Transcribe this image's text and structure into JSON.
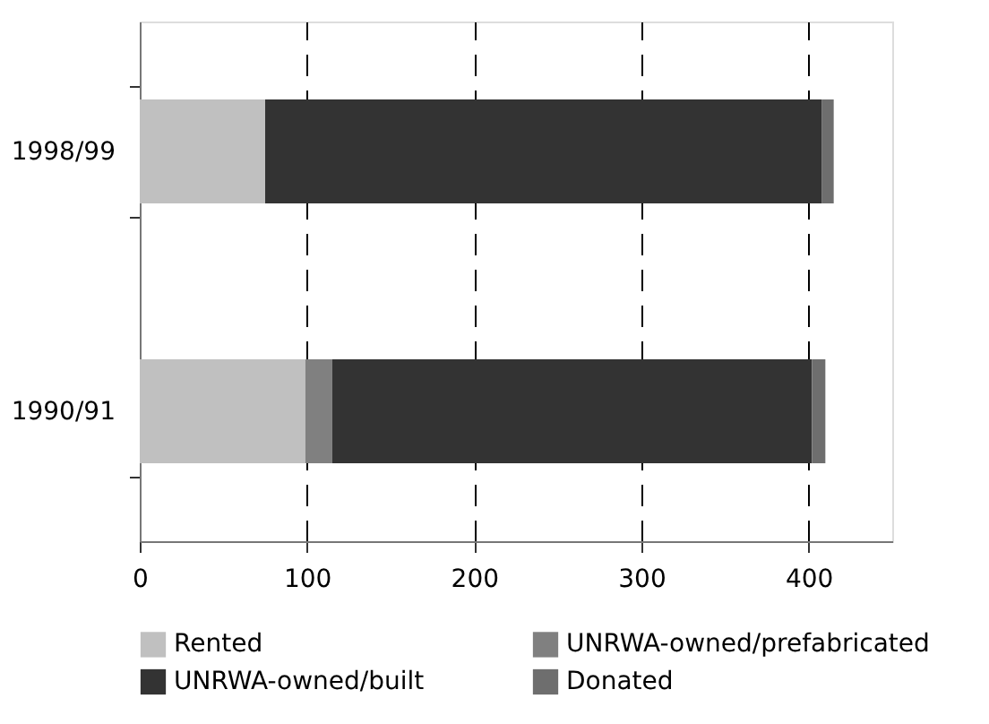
{
  "chart_data": {
    "type": "bar",
    "orientation": "horizontal",
    "stacked": true,
    "categories": [
      "1998/99",
      "1990/91"
    ],
    "series": [
      {
        "name": "Rented",
        "color": "#c0c0c0",
        "values": [
          75,
          99
        ]
      },
      {
        "name": "UNRWA-owned/prefabricated",
        "color": "#808080",
        "values": [
          null,
          16
        ]
      },
      {
        "name": "UNRWA-owned/built",
        "color": "#333333",
        "values": [
          333,
          287
        ]
      },
      {
        "name": "Donated",
        "color": "#6e6e6e",
        "values": [
          7,
          8
        ]
      }
    ],
    "xlim": [
      0,
      450
    ],
    "xticks": [
      0,
      100,
      200,
      300,
      400
    ],
    "grid": "x",
    "legend": "bottom"
  }
}
